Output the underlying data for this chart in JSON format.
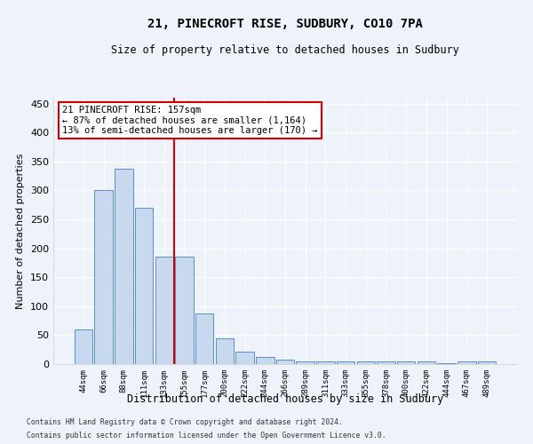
{
  "title": "21, PINECROFT RISE, SUDBURY, CO10 7PA",
  "subtitle": "Size of property relative to detached houses in Sudbury",
  "xlabel": "Distribution of detached houses by size in Sudbury",
  "ylabel": "Number of detached properties",
  "categories": [
    "44sqm",
    "66sqm",
    "88sqm",
    "111sqm",
    "133sqm",
    "155sqm",
    "177sqm",
    "200sqm",
    "222sqm",
    "244sqm",
    "266sqm",
    "289sqm",
    "311sqm",
    "333sqm",
    "355sqm",
    "378sqm",
    "400sqm",
    "422sqm",
    "444sqm",
    "467sqm",
    "489sqm"
  ],
  "bar_values": [
    60,
    300,
    338,
    270,
    185,
    185,
    88,
    45,
    22,
    12,
    7,
    4,
    4,
    4,
    4,
    5,
    4,
    4,
    1,
    4,
    4
  ],
  "bar_color": "#c8d8ee",
  "bar_edge_color": "#5a8fc0",
  "vline_color": "#cc0000",
  "annotation_line1": "21 PINECROFT RISE: 157sqm",
  "annotation_line2": "← 87% of detached houses are smaller (1,164)",
  "annotation_line3": "13% of semi-detached houses are larger (170) →",
  "annotation_box_color": "#ffffff",
  "annotation_box_edge": "#cc0000",
  "ylim": [
    0,
    460
  ],
  "yticks": [
    0,
    50,
    100,
    150,
    200,
    250,
    300,
    350,
    400,
    450
  ],
  "footer_line1": "Contains HM Land Registry data © Crown copyright and database right 2024.",
  "footer_line2": "Contains public sector information licensed under the Open Government Licence v3.0.",
  "background_color": "#eef2fa",
  "grid_color": "#ffffff",
  "title_fontsize": 10,
  "subtitle_fontsize": 9
}
